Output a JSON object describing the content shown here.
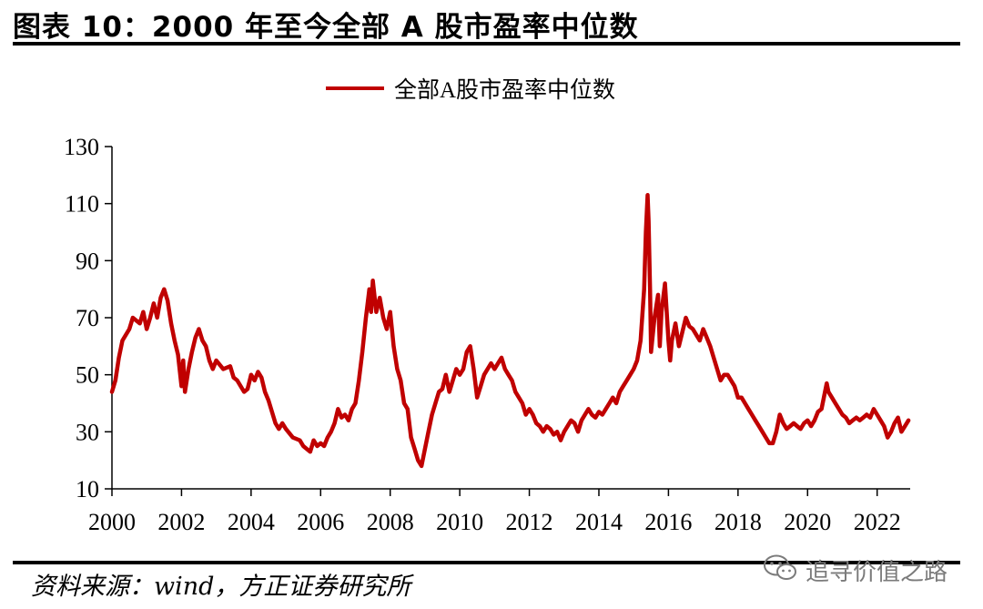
{
  "figure": {
    "title": "图表 10：2000 年至今全部 A 股市盈率中位数",
    "source": "资料来源：wind，方正证券研究所",
    "watermark": "追寻价值之路",
    "watermark_icon": "wechat-icon"
  },
  "colors": {
    "series": "#c00000",
    "axis": "#000000",
    "text": "#000000",
    "watermark": "#7b7b7b"
  },
  "chart_data": {
    "type": "line",
    "title": "",
    "xlabel": "",
    "ylabel": "",
    "xlim": [
      2000,
      2022.95
    ],
    "ylim": [
      10,
      130
    ],
    "x_ticks": [
      2000,
      2002,
      2004,
      2006,
      2008,
      2010,
      2012,
      2014,
      2016,
      2018,
      2020,
      2022
    ],
    "x_tick_labels": [
      "2000",
      "2002",
      "2004",
      "2006",
      "2008",
      "2010",
      "2012",
      "2014",
      "2016",
      "2018",
      "2020",
      "2022"
    ],
    "y_ticks": [
      10,
      30,
      50,
      70,
      90,
      110,
      130
    ],
    "y_tick_labels": [
      "10",
      "30",
      "50",
      "70",
      "90",
      "110",
      "130"
    ],
    "grid": false,
    "legend_position": "top-center",
    "series": [
      {
        "name": "全部A股市盈率中位数",
        "points": [
          [
            2000.0,
            44
          ],
          [
            2000.1,
            48
          ],
          [
            2000.2,
            56
          ],
          [
            2000.3,
            62
          ],
          [
            2000.5,
            66
          ],
          [
            2000.6,
            70
          ],
          [
            2000.8,
            68
          ],
          [
            2000.9,
            72
          ],
          [
            2001.0,
            66
          ],
          [
            2001.1,
            70
          ],
          [
            2001.2,
            75
          ],
          [
            2001.3,
            70
          ],
          [
            2001.4,
            77
          ],
          [
            2001.5,
            80
          ],
          [
            2001.6,
            76
          ],
          [
            2001.7,
            68
          ],
          [
            2001.8,
            62
          ],
          [
            2001.9,
            57
          ],
          [
            2002.0,
            46
          ],
          [
            2002.05,
            55
          ],
          [
            2002.1,
            44
          ],
          [
            2002.2,
            52
          ],
          [
            2002.3,
            58
          ],
          [
            2002.4,
            63
          ],
          [
            2002.5,
            66
          ],
          [
            2002.6,
            62
          ],
          [
            2002.7,
            60
          ],
          [
            2002.8,
            55
          ],
          [
            2002.9,
            52
          ],
          [
            2003.0,
            55
          ],
          [
            2003.2,
            52
          ],
          [
            2003.4,
            53
          ],
          [
            2003.5,
            49
          ],
          [
            2003.6,
            48
          ],
          [
            2003.8,
            44
          ],
          [
            2003.9,
            45
          ],
          [
            2004.0,
            50
          ],
          [
            2004.1,
            48
          ],
          [
            2004.2,
            51
          ],
          [
            2004.3,
            49
          ],
          [
            2004.4,
            44
          ],
          [
            2004.5,
            41
          ],
          [
            2004.6,
            37
          ],
          [
            2004.7,
            33
          ],
          [
            2004.8,
            31
          ],
          [
            2004.9,
            33
          ],
          [
            2005.0,
            31
          ],
          [
            2005.2,
            28
          ],
          [
            2005.4,
            27
          ],
          [
            2005.5,
            25
          ],
          [
            2005.7,
            23
          ],
          [
            2005.8,
            27
          ],
          [
            2005.9,
            25
          ],
          [
            2006.0,
            26
          ],
          [
            2006.1,
            25
          ],
          [
            2006.2,
            28
          ],
          [
            2006.3,
            30
          ],
          [
            2006.4,
            33
          ],
          [
            2006.5,
            38
          ],
          [
            2006.6,
            35
          ],
          [
            2006.7,
            36
          ],
          [
            2006.8,
            34
          ],
          [
            2006.9,
            38
          ],
          [
            2007.0,
            40
          ],
          [
            2007.1,
            48
          ],
          [
            2007.2,
            58
          ],
          [
            2007.3,
            70
          ],
          [
            2007.4,
            80
          ],
          [
            2007.45,
            72
          ],
          [
            2007.5,
            83
          ],
          [
            2007.6,
            72
          ],
          [
            2007.7,
            77
          ],
          [
            2007.8,
            70
          ],
          [
            2007.9,
            66
          ],
          [
            2008.0,
            72
          ],
          [
            2008.1,
            60
          ],
          [
            2008.2,
            52
          ],
          [
            2008.3,
            48
          ],
          [
            2008.4,
            40
          ],
          [
            2008.5,
            38
          ],
          [
            2008.6,
            28
          ],
          [
            2008.7,
            24
          ],
          [
            2008.8,
            20
          ],
          [
            2008.9,
            18
          ],
          [
            2009.0,
            24
          ],
          [
            2009.1,
            30
          ],
          [
            2009.2,
            36
          ],
          [
            2009.3,
            40
          ],
          [
            2009.4,
            44
          ],
          [
            2009.5,
            45
          ],
          [
            2009.6,
            50
          ],
          [
            2009.7,
            44
          ],
          [
            2009.8,
            48
          ],
          [
            2009.9,
            52
          ],
          [
            2010.0,
            50
          ],
          [
            2010.1,
            52
          ],
          [
            2010.2,
            58
          ],
          [
            2010.3,
            60
          ],
          [
            2010.4,
            52
          ],
          [
            2010.5,
            42
          ],
          [
            2010.6,
            46
          ],
          [
            2010.7,
            50
          ],
          [
            2010.8,
            52
          ],
          [
            2010.9,
            54
          ],
          [
            2011.0,
            52
          ],
          [
            2011.1,
            54
          ],
          [
            2011.2,
            56
          ],
          [
            2011.3,
            52
          ],
          [
            2011.4,
            50
          ],
          [
            2011.5,
            48
          ],
          [
            2011.6,
            44
          ],
          [
            2011.7,
            42
          ],
          [
            2011.8,
            40
          ],
          [
            2011.9,
            36
          ],
          [
            2012.0,
            38
          ],
          [
            2012.1,
            36
          ],
          [
            2012.2,
            33
          ],
          [
            2012.3,
            32
          ],
          [
            2012.4,
            30
          ],
          [
            2012.5,
            32
          ],
          [
            2012.6,
            31
          ],
          [
            2012.7,
            29
          ],
          [
            2012.8,
            30
          ],
          [
            2012.9,
            27
          ],
          [
            2013.0,
            30
          ],
          [
            2013.1,
            32
          ],
          [
            2013.2,
            34
          ],
          [
            2013.3,
            33
          ],
          [
            2013.4,
            30
          ],
          [
            2013.5,
            34
          ],
          [
            2013.6,
            36
          ],
          [
            2013.7,
            38
          ],
          [
            2013.8,
            36
          ],
          [
            2013.9,
            35
          ],
          [
            2014.0,
            37
          ],
          [
            2014.1,
            36
          ],
          [
            2014.2,
            38
          ],
          [
            2014.3,
            40
          ],
          [
            2014.4,
            42
          ],
          [
            2014.5,
            40
          ],
          [
            2014.6,
            44
          ],
          [
            2014.7,
            46
          ],
          [
            2014.8,
            48
          ],
          [
            2014.9,
            50
          ],
          [
            2015.0,
            52
          ],
          [
            2015.1,
            55
          ],
          [
            2015.2,
            62
          ],
          [
            2015.3,
            80
          ],
          [
            2015.35,
            100
          ],
          [
            2015.4,
            113
          ],
          [
            2015.43,
            104
          ],
          [
            2015.47,
            80
          ],
          [
            2015.5,
            58
          ],
          [
            2015.6,
            70
          ],
          [
            2015.7,
            78
          ],
          [
            2015.75,
            60
          ],
          [
            2015.8,
            72
          ],
          [
            2015.9,
            82
          ],
          [
            2016.0,
            62
          ],
          [
            2016.05,
            55
          ],
          [
            2016.1,
            62
          ],
          [
            2016.2,
            68
          ],
          [
            2016.3,
            60
          ],
          [
            2016.4,
            65
          ],
          [
            2016.5,
            70
          ],
          [
            2016.6,
            67
          ],
          [
            2016.7,
            66
          ],
          [
            2016.8,
            64
          ],
          [
            2016.9,
            62
          ],
          [
            2017.0,
            66
          ],
          [
            2017.1,
            63
          ],
          [
            2017.2,
            60
          ],
          [
            2017.3,
            56
          ],
          [
            2017.4,
            52
          ],
          [
            2017.5,
            48
          ],
          [
            2017.6,
            50
          ],
          [
            2017.7,
            50
          ],
          [
            2017.8,
            48
          ],
          [
            2017.9,
            46
          ],
          [
            2018.0,
            42
          ],
          [
            2018.1,
            42
          ],
          [
            2018.2,
            40
          ],
          [
            2018.3,
            38
          ],
          [
            2018.4,
            36
          ],
          [
            2018.5,
            34
          ],
          [
            2018.6,
            32
          ],
          [
            2018.7,
            30
          ],
          [
            2018.8,
            28
          ],
          [
            2018.9,
            26
          ],
          [
            2019.0,
            26
          ],
          [
            2019.1,
            30
          ],
          [
            2019.2,
            36
          ],
          [
            2019.3,
            33
          ],
          [
            2019.4,
            31
          ],
          [
            2019.5,
            32
          ],
          [
            2019.6,
            33
          ],
          [
            2019.7,
            32
          ],
          [
            2019.8,
            31
          ],
          [
            2019.9,
            33
          ],
          [
            2020.0,
            34
          ],
          [
            2020.1,
            32
          ],
          [
            2020.2,
            34
          ],
          [
            2020.3,
            37
          ],
          [
            2020.4,
            38
          ],
          [
            2020.5,
            44
          ],
          [
            2020.55,
            47
          ],
          [
            2020.6,
            44
          ],
          [
            2020.7,
            42
          ],
          [
            2020.8,
            40
          ],
          [
            2020.9,
            38
          ],
          [
            2021.0,
            36
          ],
          [
            2021.1,
            35
          ],
          [
            2021.2,
            33
          ],
          [
            2021.3,
            34
          ],
          [
            2021.4,
            35
          ],
          [
            2021.5,
            34
          ],
          [
            2021.6,
            35
          ],
          [
            2021.7,
            36
          ],
          [
            2021.8,
            35
          ],
          [
            2021.9,
            38
          ],
          [
            2022.0,
            36
          ],
          [
            2022.1,
            34
          ],
          [
            2022.2,
            32
          ],
          [
            2022.3,
            28
          ],
          [
            2022.4,
            30
          ],
          [
            2022.5,
            33
          ],
          [
            2022.6,
            35
          ],
          [
            2022.7,
            30
          ],
          [
            2022.8,
            32
          ],
          [
            2022.9,
            34
          ]
        ]
      }
    ]
  }
}
